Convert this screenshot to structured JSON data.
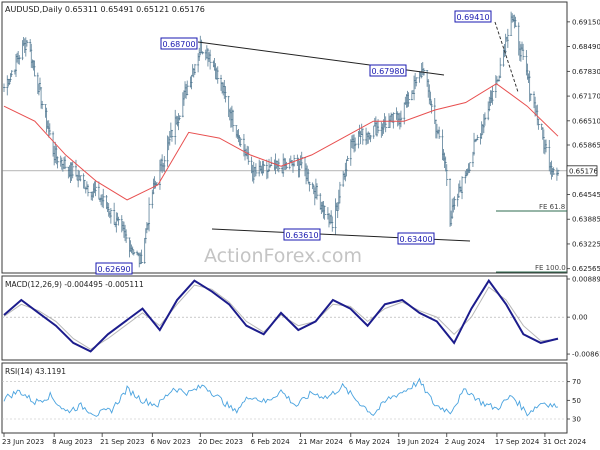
{
  "chart_data": [
    {
      "type": "candlestick",
      "header": "AUDUSD,Daily  0.65311 0.65491 0.65121 0.65176",
      "ylim": [
        0.6245,
        0.6968
      ],
      "y_ticks": [
        "0.69150",
        "0.68490",
        "0.67830",
        "0.67170",
        "0.66510",
        "0.65865",
        "0.64545",
        "0.63885",
        "0.63225",
        "0.62565"
      ],
      "current_price": "0.65176",
      "x_tick_labels": [
        "23 Jun 2023",
        "8 Aug 2023",
        "21 Sep 2023",
        "6 Nov 2023",
        "20 Dec 2023",
        "6 Feb 2024",
        "21 Mar 2024",
        "6 May 2024",
        "19 Jun 2024",
        "2 Aug 2024",
        "17 Sep 2024",
        "31 Oct 2024"
      ],
      "price_labels": [
        "0.68700",
        "0.67980",
        "0.69410",
        "0.63610",
        "0.63400",
        "0.62690"
      ],
      "fib_labels": [
        "FE 61.8",
        "FE 100.0"
      ],
      "watermark": "ActionForex.com",
      "anchor_points": [
        {
          "date": "23 Jun 2023",
          "close": 0.674
        },
        {
          "date": "14 Jul 2023",
          "close": 0.687
        },
        {
          "date": "8 Aug 2023",
          "close": 0.656
        },
        {
          "date": "21 Sep 2023",
          "close": 0.644
        },
        {
          "date": "26 Oct 2023",
          "close": 0.6275
        },
        {
          "date": "6 Nov 2023",
          "close": 0.646
        },
        {
          "date": "20 Dec 2023",
          "close": 0.685
        },
        {
          "date": "28 Dec 2023",
          "close": 0.683
        },
        {
          "date": "6 Feb 2024",
          "close": 0.651
        },
        {
          "date": "21 Mar 2024",
          "close": 0.654
        },
        {
          "date": "19 Apr 2024",
          "close": 0.637
        },
        {
          "date": "6 May 2024",
          "close": 0.66
        },
        {
          "date": "19 Jun 2024",
          "close": 0.666
        },
        {
          "date": "11 Jul 2024",
          "close": 0.679
        },
        {
          "date": "2 Aug 2024",
          "close": 0.651
        },
        {
          "date": "5 Aug 2024",
          "close": 0.639
        },
        {
          "date": "17 Sep 2024",
          "close": 0.676
        },
        {
          "date": "30 Sep 2024",
          "close": 0.6935
        },
        {
          "date": "31 Oct 2024",
          "close": 0.658
        },
        {
          "date": "6 Nov 2024",
          "close": 0.653
        },
        {
          "date": "12 Nov 2024",
          "close": 0.6518
        }
      ],
      "sma_series": {
        "values": [
          0.669,
          0.665,
          0.656,
          0.649,
          0.644,
          0.648,
          0.662,
          0.6605,
          0.656,
          0.653,
          0.656,
          0.6605,
          0.665,
          0.665,
          0.668,
          0.67,
          0.675,
          0.669,
          0.661
        ]
      }
    },
    {
      "type": "line",
      "label": "MACD(12,26,9) -0.004495 -0.005111",
      "ylim": [
        -0.01,
        0.0096
      ],
      "y_ticks": [
        "0.008899",
        "0.00",
        "-0.008612"
      ],
      "series": [
        {
          "name": "MACD",
          "values": [
            0.0005,
            0.004,
            0.001,
            -0.002,
            -0.006,
            -0.008,
            -0.004,
            -0.001,
            0.002,
            -0.003,
            0.004,
            0.0085,
            0.006,
            0.003,
            -0.002,
            -0.004,
            0.001,
            -0.003,
            -0.001,
            0.004,
            0.002,
            -0.002,
            0.003,
            0.004,
            0.001,
            -0.001,
            -0.006,
            0.002,
            0.0085,
            0.003,
            -0.004,
            -0.006,
            -0.005
          ]
        },
        {
          "name": "Signal",
          "values": [
            0.0002,
            0.003,
            0.0015,
            -0.001,
            -0.005,
            -0.0075,
            -0.005,
            -0.002,
            0.001,
            -0.002,
            0.003,
            0.0075,
            0.0065,
            0.0035,
            -0.001,
            -0.0035,
            0.0005,
            -0.002,
            -0.001,
            0.003,
            0.0025,
            -0.001,
            0.002,
            0.0035,
            0.0015,
            0,
            -0.004,
            0,
            0.007,
            0.004,
            -0.002,
            -0.0055,
            -0.0052
          ]
        }
      ]
    },
    {
      "type": "line",
      "label": "RSI(14) 43.1191",
      "ylim": [
        15,
        90
      ],
      "y_ticks": [
        "70",
        "50",
        "30"
      ],
      "series": [
        {
          "name": "RSI",
          "values": [
            52,
            60,
            48,
            55,
            38,
            44,
            35,
            40,
            62,
            50,
            45,
            63,
            58,
            66,
            52,
            38,
            55,
            48,
            60,
            44,
            58,
            53,
            65,
            49,
            35,
            52,
            60,
            70,
            45,
            38,
            62,
            48,
            41,
            55,
            36,
            48,
            43
          ]
        }
      ]
    }
  ]
}
